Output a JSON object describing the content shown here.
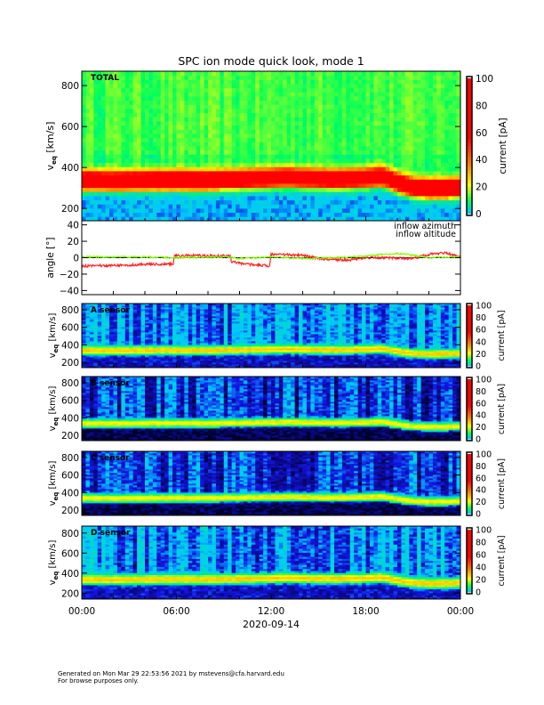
{
  "chart_data": {
    "type": "heatmap",
    "title": "SPC ion mode quick look, mode 1",
    "xlabel": "2020-09-14",
    "x_tick_labels": [
      "00:00",
      "06:00",
      "12:00",
      "18:00",
      "00:00"
    ],
    "x_range_hours": [
      0,
      24
    ],
    "speed_axis": {
      "label": "v",
      "label_sub": "eq",
      "label_units": "[km/s]",
      "ylim": [
        140,
        870
      ],
      "tick_labels": [
        "200",
        "400",
        "600",
        "800"
      ],
      "ticks": [
        200,
        400,
        600,
        800
      ]
    },
    "colorbar": {
      "label": "current [pA]",
      "range": [
        0,
        100
      ],
      "tick_labels": [
        "0",
        "20",
        "40",
        "60",
        "80",
        "100"
      ],
      "ticks": [
        0,
        20,
        40,
        60,
        80,
        100
      ]
    },
    "bulk_speed_kms": {
      "hours": [
        0,
        2,
        4,
        6,
        8,
        10,
        12,
        13,
        14,
        16,
        18,
        19,
        20,
        21,
        22,
        23,
        24
      ],
      "values": [
        340,
        338,
        340,
        342,
        340,
        345,
        350,
        355,
        350,
        345,
        350,
        360,
        330,
        305,
        300,
        300,
        305
      ]
    },
    "spectrogram_panels": [
      {
        "name": "TOTAL",
        "peak_current_pA": 90,
        "background_high_pA": 9,
        "background_low_pA": 0
      },
      {
        "name": "A sensor",
        "peak_current_pA": 28,
        "background_high_pA": -1,
        "background_low_pA": -4
      },
      {
        "name": "B sensor",
        "peak_current_pA": 26,
        "background_high_pA": -3,
        "background_low_pA": -7
      },
      {
        "name": "C sensor",
        "peak_current_pA": 26,
        "background_high_pA": -3,
        "background_low_pA": -7
      },
      {
        "name": "D sensor",
        "peak_current_pA": 28,
        "background_high_pA": -1,
        "background_low_pA": -4
      }
    ],
    "angle_panel": {
      "ylabel": "angle [°]",
      "ylim": [
        -45,
        45
      ],
      "tick_labels": [
        "-40",
        "-20",
        "0",
        "20",
        "40"
      ],
      "ticks": [
        -40,
        -20,
        0,
        20,
        40
      ],
      "series": [
        {
          "name": "inflow azimuth",
          "color": "#ff2020",
          "hours": [
            0,
            3,
            4,
            5.8,
            5.85,
            9.4,
            9.5,
            10.5,
            11.9,
            12.0,
            14,
            15,
            17,
            18,
            19.5,
            21,
            22,
            23,
            24
          ],
          "values": [
            -10,
            -9,
            -8,
            -8,
            3,
            2,
            -5,
            -8,
            -10,
            4,
            3,
            -1,
            -3,
            0,
            0,
            -1,
            4,
            6,
            1
          ]
        },
        {
          "name": "inflow altitude",
          "color": "#80ff00",
          "hours": [
            0,
            4,
            6,
            9,
            10,
            12,
            14,
            16,
            18,
            19,
            20,
            21,
            22,
            24
          ],
          "values": [
            1,
            1,
            0,
            1,
            -1,
            1,
            -1,
            0,
            2,
            4,
            5,
            3,
            0,
            1
          ]
        }
      ]
    }
  },
  "footer": {
    "line1": "Generated on Mon Mar 29 22:53:56 2021 by mstevens@cfa.harvard.edu",
    "line2": "For browse purposes only."
  }
}
